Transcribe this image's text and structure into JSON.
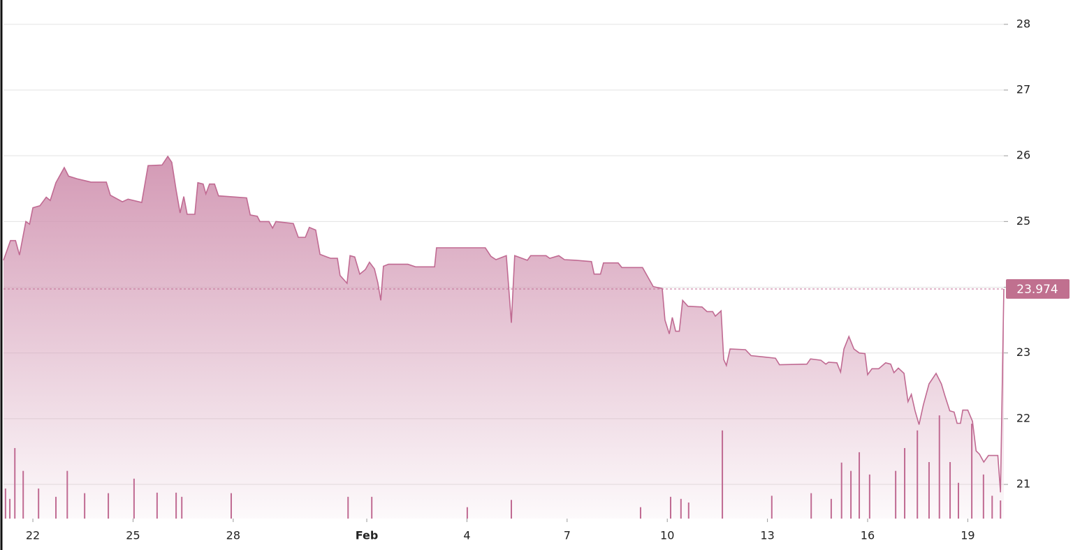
{
  "chart_data": {
    "type": "area",
    "color": "#c06a92",
    "x": [
      21.12,
      21.33,
      21.48,
      21.6,
      21.79,
      21.9,
      22.0,
      22.21,
      22.4,
      22.52,
      22.69,
      22.94,
      23.07,
      23.32,
      23.74,
      24.2,
      24.32,
      24.68,
      24.85,
      25.26,
      25.45,
      25.87,
      26.04,
      26.16,
      26.29,
      26.41,
      26.52,
      26.62,
      26.85,
      26.94,
      27.1,
      27.18,
      27.29,
      27.44,
      27.56,
      28.4,
      28.51,
      28.72,
      28.8,
      29.07,
      29.18,
      29.28,
      29.8,
      29.95,
      30.16,
      30.28,
      30.47,
      30.6,
      30.81,
      30.92,
      31.12,
      31.2,
      31.41,
      31.5,
      31.64,
      31.79,
      31.96,
      32.08,
      32.23,
      32.33,
      32.42,
      32.5,
      32.65,
      33.23,
      33.46,
      34.03,
      34.09,
      35.55,
      35.72,
      35.87,
      36.18,
      36.33,
      36.43,
      36.81,
      36.91,
      37.37,
      37.48,
      37.75,
      37.92,
      38.27,
      38.73,
      38.81,
      39.0,
      39.09,
      39.53,
      39.64,
      40.26,
      40.58,
      40.85,
      40.93,
      41.06,
      41.15,
      41.25,
      41.36,
      41.46,
      41.62,
      42.04,
      42.19,
      42.36,
      42.44,
      42.61,
      42.69,
      42.77,
      42.88,
      43.34,
      43.51,
      43.87,
      44.24,
      44.36,
      45.18,
      45.29,
      45.6,
      45.75,
      45.83,
      46.08,
      46.19,
      46.29,
      46.44,
      46.59,
      46.75,
      46.92,
      47.0,
      47.13,
      47.33,
      47.54,
      47.69,
      47.79,
      47.92,
      48.09,
      48.21,
      48.31,
      48.42,
      48.54,
      48.67,
      48.84,
      49.05,
      49.21,
      49.32,
      49.46,
      49.59,
      49.68,
      49.78,
      49.85,
      50.0,
      50.14,
      50.25,
      50.35,
      50.48,
      50.62,
      50.9,
      50.98,
      51.08
    ],
    "values": [
      24.41,
      24.71,
      24.71,
      24.49,
      25.0,
      24.96,
      25.21,
      25.24,
      25.37,
      25.32,
      25.59,
      25.82,
      25.69,
      25.65,
      25.6,
      25.6,
      25.4,
      25.3,
      25.34,
      25.29,
      25.85,
      25.86,
      25.99,
      25.9,
      25.48,
      25.13,
      25.38,
      25.11,
      25.11,
      25.59,
      25.57,
      25.42,
      25.57,
      25.57,
      25.39,
      25.36,
      25.1,
      25.08,
      25.0,
      25.0,
      24.9,
      25.0,
      24.97,
      24.76,
      24.76,
      24.91,
      24.87,
      24.5,
      24.46,
      24.44,
      24.44,
      24.18,
      24.06,
      24.48,
      24.46,
      24.2,
      24.27,
      24.38,
      24.28,
      24.07,
      23.8,
      24.32,
      24.35,
      24.35,
      24.31,
      24.31,
      24.6,
      24.6,
      24.47,
      24.42,
      24.48,
      23.46,
      24.48,
      24.41,
      24.48,
      24.48,
      24.44,
      24.48,
      24.42,
      24.41,
      24.39,
      24.2,
      24.2,
      24.37,
      24.37,
      24.3,
      24.3,
      24.01,
      23.98,
      23.5,
      23.29,
      23.54,
      23.33,
      23.33,
      23.8,
      23.71,
      23.7,
      23.63,
      23.63,
      23.56,
      23.64,
      22.9,
      22.81,
      23.06,
      23.05,
      22.96,
      22.94,
      22.92,
      22.82,
      22.83,
      22.91,
      22.89,
      22.83,
      22.86,
      22.85,
      22.71,
      23.06,
      23.25,
      23.06,
      23.0,
      22.99,
      22.67,
      22.76,
      22.76,
      22.85,
      22.83,
      22.7,
      22.77,
      22.69,
      22.26,
      22.37,
      22.12,
      21.91,
      22.21,
      22.53,
      22.69,
      22.53,
      22.34,
      22.12,
      22.1,
      21.93,
      21.93,
      22.13,
      22.13,
      21.96,
      21.51,
      21.46,
      21.34,
      21.44,
      21.44,
      20.88,
      23.974
    ],
    "last_value": 23.974,
    "volume_color": "#c06a92",
    "volume_x": [
      21.18,
      21.31,
      21.46,
      21.71,
      22.17,
      22.69,
      23.03,
      23.55,
      24.26,
      25.03,
      25.72,
      26.29,
      26.46,
      27.94,
      31.44,
      32.15,
      35.01,
      36.33,
      40.2,
      41.1,
      41.41,
      41.64,
      42.65,
      44.13,
      45.31,
      45.91,
      46.22,
      46.5,
      46.75,
      47.06,
      47.84,
      48.11,
      48.49,
      48.84,
      49.15,
      49.47,
      49.72,
      50.12,
      50.47,
      50.73,
      50.98
    ],
    "volume_values": [
      5.8,
      3.8,
      13.6,
      9.2,
      5.8,
      4.2,
      9.2,
      4.9,
      4.9,
      7.7,
      5.0,
      5.0,
      4.2,
      4.9,
      4.2,
      4.2,
      2.2,
      3.6,
      2.2,
      4.2,
      3.8,
      3.1,
      17.0,
      4.4,
      4.9,
      3.8,
      10.8,
      9.2,
      12.8,
      8.5,
      9.2,
      13.6,
      17.0,
      10.9,
      19.9,
      10.9,
      6.9,
      18.3,
      8.5,
      4.4,
      3.5
    ],
    "y2lim": [
      0,
      100
    ],
    "xlim": [
      21.12,
      51.08
    ],
    "xticks": [
      22,
      25,
      28,
      {
        "value": 32,
        "label": "Feb"
      },
      {
        "value": 35,
        "label": "4"
      },
      {
        "value": 38,
        "label": "7"
      },
      {
        "value": 41,
        "label": "10"
      },
      {
        "value": 44,
        "label": "13"
      },
      {
        "value": 47,
        "label": "16"
      },
      {
        "value": 50,
        "label": "19"
      }
    ],
    "ylim": [
      20.48,
      28.37
    ],
    "yticks": [
      21,
      22,
      23,
      24,
      25,
      26,
      27,
      28
    ],
    "grid": true
  }
}
